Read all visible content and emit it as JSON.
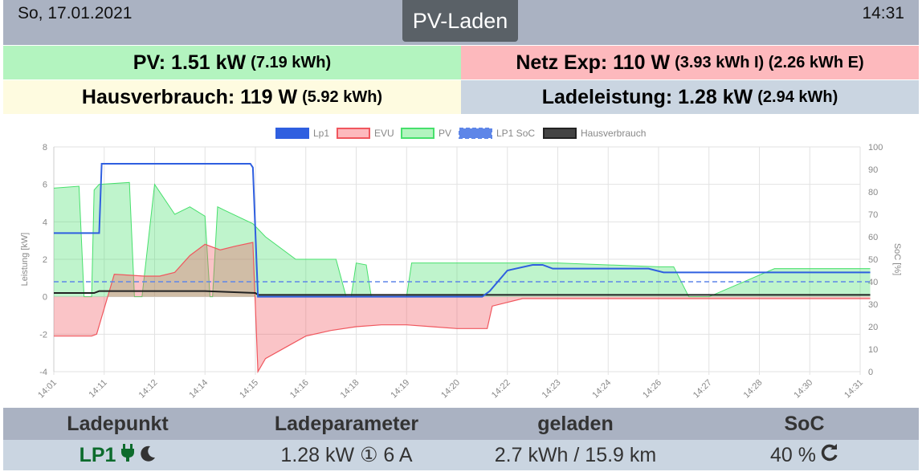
{
  "header": {
    "date": "So, 17.01.2021",
    "title": "PV-Laden",
    "time": "14:31"
  },
  "stats": {
    "pv": {
      "label": "PV: 1.51 kW",
      "detail": "(7.19 kWh)"
    },
    "netz": {
      "label": "Netz Exp: 110 W",
      "detail": "(3.93 kWh I) (2.26 kWh E)"
    },
    "haus": {
      "label": "Hausverbrauch: 119 W",
      "detail": "(5.92 kWh)"
    },
    "lade": {
      "label": "Ladeleistung: 1.28 kW",
      "detail": "(2.94 kWh)"
    }
  },
  "table": {
    "headers": [
      "Ladepunkt",
      "Ladeparameter",
      "geladen",
      "SoC"
    ],
    "row": {
      "ladepunkt": "LP1",
      "ladeparameter": "1.28 kW ① 6 A",
      "geladen": "2.7 kWh / 15.9 km",
      "soc": "40 %"
    },
    "icons": [
      "plug-icon",
      "moon-icon",
      "refresh-icon"
    ]
  },
  "colors": {
    "lp1": "#2f5fe0",
    "evu": "#f0575e",
    "pv": "#47e06c",
    "soc": "#5e86e8",
    "haus": "#222222"
  },
  "chart_data": {
    "type": "line",
    "ylabel": "Leistung [kW]",
    "y2label": "SoC [%]",
    "ylim": [
      -4,
      8
    ],
    "y2lim": [
      0,
      100
    ],
    "yticks": [
      "8",
      "6",
      "4",
      "2",
      "0",
      "-2",
      "-4"
    ],
    "y2ticks": [
      "100",
      "90",
      "80",
      "70",
      "60",
      "50",
      "40",
      "30",
      "20",
      "10",
      "0"
    ],
    "xticks": [
      "14:01",
      "14:11",
      "14:12",
      "14:14",
      "14:15",
      "14:16",
      "14:18",
      "14:19",
      "14:20",
      "14:22",
      "14:23",
      "14:24",
      "14:26",
      "14:27",
      "14:28",
      "14:30",
      "14:31"
    ],
    "grid": true,
    "legend": "top",
    "series": [
      {
        "name": "Lp1",
        "x": [
          0,
          0.75,
          0.9,
          0.95,
          1.2,
          3.9,
          3.95,
          4.05,
          8.5,
          8.65,
          9.0,
          9.5,
          9.7,
          9.9,
          10.2,
          11.8,
          12.1,
          12.5,
          14.3,
          16.2
        ],
        "values": [
          3.4,
          3.4,
          3.4,
          7.1,
          7.1,
          7.1,
          6.9,
          0,
          0,
          0.3,
          1.4,
          1.7,
          1.7,
          1.5,
          1.5,
          1.5,
          1.3,
          1.3,
          1.3,
          1.3
        ]
      },
      {
        "name": "EVU",
        "x": [
          0,
          0.75,
          0.85,
          1.2,
          1.8,
          2.1,
          2.4,
          2.7,
          3.0,
          3.3,
          3.6,
          3.95,
          4.05,
          4.2,
          4.6,
          5.0,
          5.5,
          6.0,
          6.5,
          7.0,
          7.5,
          8.0,
          8.6,
          8.7,
          9.0,
          9.3,
          10.0,
          12.0,
          14.0,
          16.2
        ],
        "values": [
          -2.1,
          -2.1,
          -2.0,
          1.2,
          1.1,
          1.1,
          1.3,
          2.2,
          2.8,
          2.5,
          2.7,
          2.9,
          -4.0,
          -3.3,
          -2.7,
          -2.1,
          -1.8,
          -1.6,
          -1.5,
          -1.5,
          -1.6,
          -1.7,
          -1.7,
          -0.5,
          -0.3,
          -0.1,
          -0.1,
          -0.1,
          -0.1,
          -0.1
        ]
      },
      {
        "name": "PV",
        "x": [
          0,
          0.5,
          0.6,
          0.7,
          0.75,
          0.8,
          0.9,
          1.5,
          1.6,
          1.75,
          2.0,
          2.4,
          2.7,
          3.0,
          3.1,
          3.15,
          3.25,
          3.4,
          3.95,
          4.2,
          4.8,
          5.6,
          5.8,
          5.9,
          6.0,
          6.2,
          6.3,
          7.0,
          7.1,
          7.3,
          7.4,
          9.0,
          10.0,
          12.0,
          12.3,
          12.6,
          13.0,
          14.3,
          16.2
        ],
        "values": [
          5.8,
          5.9,
          0,
          0,
          0,
          5.7,
          6.0,
          6.1,
          0,
          0,
          6.0,
          4.4,
          4.8,
          4.3,
          0,
          0,
          4.8,
          4.6,
          3.9,
          3.2,
          2.0,
          2.0,
          0,
          0,
          1.8,
          1.7,
          0,
          0,
          1.8,
          1.8,
          1.8,
          1.8,
          1.8,
          1.6,
          1.6,
          0,
          0,
          1.5,
          1.5
        ]
      },
      {
        "name": "LP1 SoC",
        "x": [
          0,
          16.2
        ],
        "values": [
          40,
          40
        ]
      },
      {
        "name": "Hausverbrauch",
        "x": [
          0,
          0.8,
          0.9,
          2.0,
          3.0,
          4.0,
          4.05,
          6.0,
          8.0,
          10.0,
          12.0,
          14.0,
          16.2
        ],
        "values": [
          0.2,
          0.2,
          0.3,
          0.3,
          0.3,
          0.2,
          0.1,
          0.1,
          0.1,
          0.1,
          0.1,
          0.1,
          0.1
        ]
      }
    ]
  }
}
